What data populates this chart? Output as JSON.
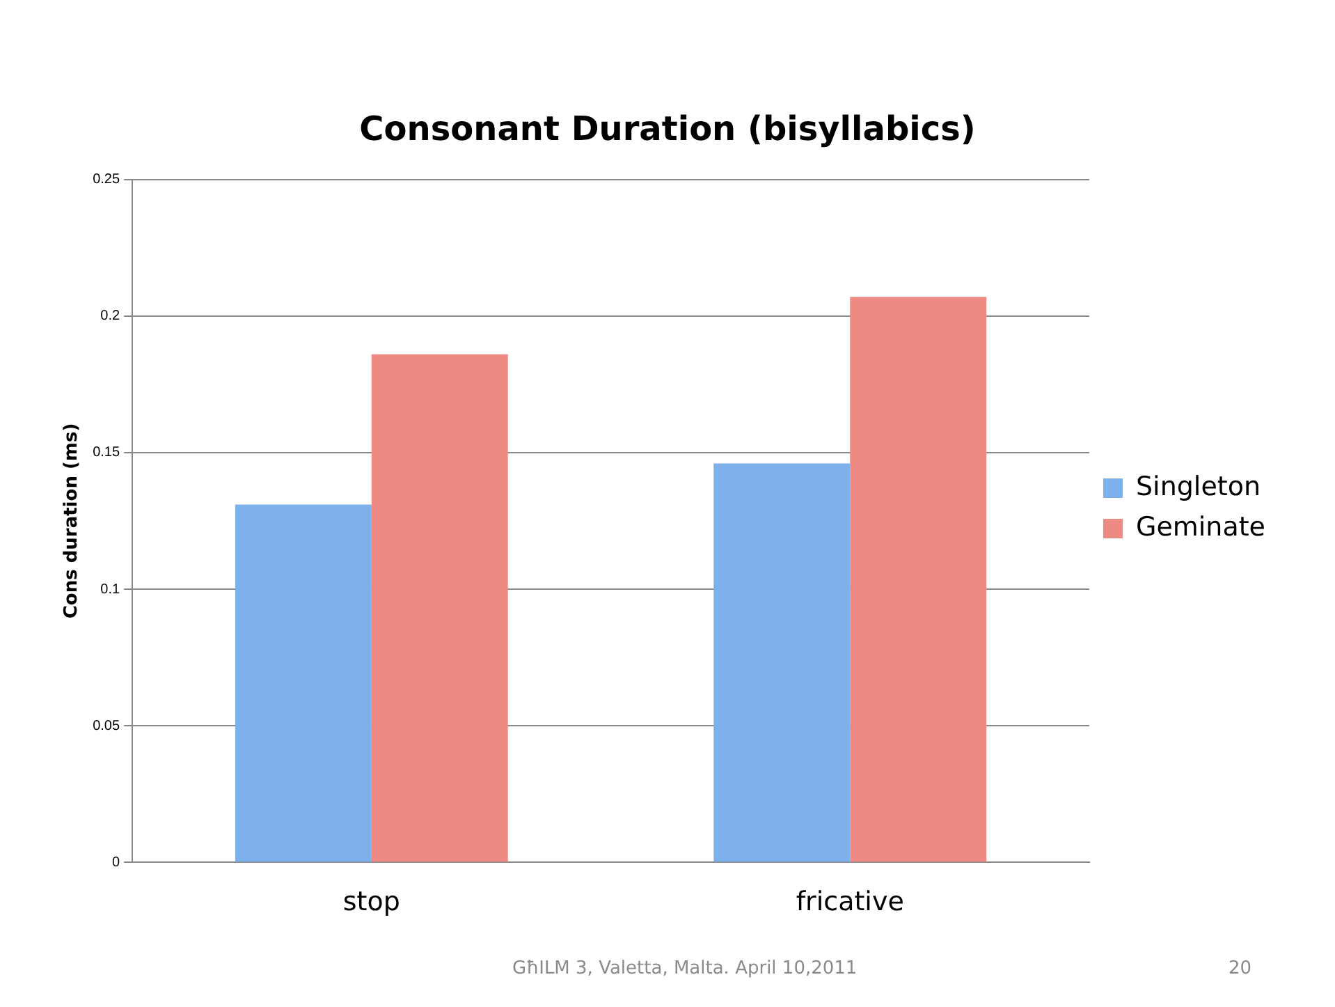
{
  "chart_data": {
    "type": "bar",
    "title": "Consonant Duration (bisyllabics)",
    "ylabel": "Cons duration (ms)",
    "categories": [
      "stop",
      "fricative"
    ],
    "series": [
      {
        "name": "Singleton",
        "color": "#7eb0ec",
        "values": [
          0.131,
          0.146
        ]
      },
      {
        "name": "Geminate",
        "color": "#ee8a84",
        "values": [
          0.186,
          0.207
        ]
      }
    ],
    "ylim": [
      0,
      0.25
    ],
    "yticks": [
      0,
      0.05,
      0.1,
      0.15,
      0.2,
      0.25
    ],
    "grid": "y",
    "legend": "right",
    "annotations": [
      "GħILM 3, Valetta, Malta. April 10,2011",
      "20"
    ]
  }
}
